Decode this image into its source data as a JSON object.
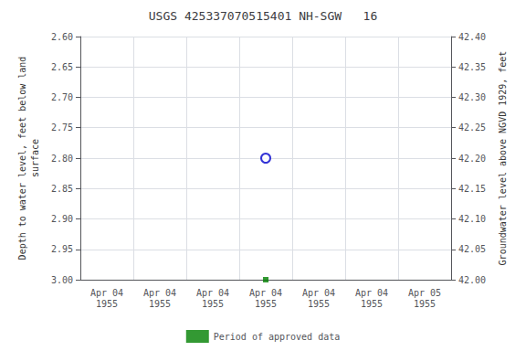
{
  "chart_data": {
    "type": "scatter",
    "title": "USGS 425337070515401 NH-SGW   16",
    "ylabel": "Depth to water level, feet below land\nsurface",
    "y2label": "Groundwater level above NGVD 1929, feet",
    "categories": [
      "Apr 04\n1955",
      "Apr 04\n1955",
      "Apr 04\n1955",
      "Apr 04\n1955",
      "Apr 04\n1955",
      "Apr 04\n1955",
      "Apr 05\n1955"
    ],
    "ylim": [
      3.0,
      2.6
    ],
    "yticks": [
      {
        "value": 2.6,
        "label": "2.60"
      },
      {
        "value": 2.65,
        "label": "2.65"
      },
      {
        "value": 2.7,
        "label": "2.70"
      },
      {
        "value": 2.75,
        "label": "2.75"
      },
      {
        "value": 2.8,
        "label": "2.80"
      },
      {
        "value": 2.85,
        "label": "2.85"
      },
      {
        "value": 2.9,
        "label": "2.90"
      },
      {
        "value": 2.95,
        "label": "2.95"
      },
      {
        "value": 3.0,
        "label": "3.00"
      }
    ],
    "y2lim": [
      42.0,
      42.4
    ],
    "y2ticks": [
      {
        "value": 42.0,
        "label": "42.00"
      },
      {
        "value": 42.05,
        "label": "42.05"
      },
      {
        "value": 42.1,
        "label": "42.10"
      },
      {
        "value": 42.15,
        "label": "42.15"
      },
      {
        "value": 42.2,
        "label": "42.20"
      },
      {
        "value": 42.25,
        "label": "42.25"
      },
      {
        "value": 42.3,
        "label": "42.30"
      },
      {
        "value": 42.35,
        "label": "42.35"
      },
      {
        "value": 42.4,
        "label": "42.40"
      }
    ],
    "series": [
      {
        "values": [
          null,
          null,
          null,
          2.8,
          null,
          null,
          null
        ],
        "color": "#0000cc",
        "marker": "open_circle"
      },
      {
        "name": "Period of approved data",
        "values": [
          null,
          null,
          null,
          3.0,
          null,
          null,
          null
        ],
        "color": "#008000",
        "marker": "square"
      }
    ],
    "grid": true,
    "legend": "bottom"
  }
}
